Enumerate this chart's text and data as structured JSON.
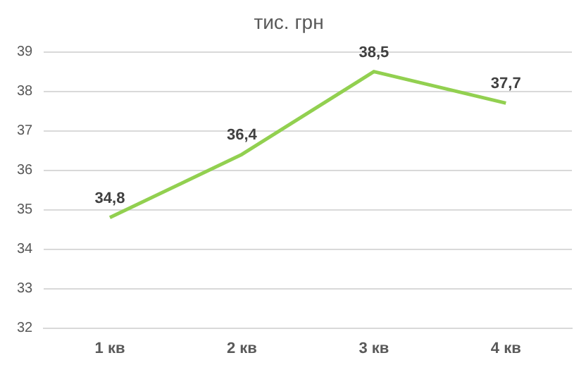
{
  "chart_data": {
    "type": "line",
    "title": "тис. грн",
    "categories": [
      "1 кв",
      "2 кв",
      "3 кв",
      "4 кв"
    ],
    "series": [
      {
        "color": "#92d050",
        "values": [
          34.8,
          36.4,
          38.5,
          37.7
        ],
        "value_labels": [
          "34,8",
          "36,4",
          "38,5",
          "37,7"
        ]
      }
    ],
    "ylim": [
      32,
      39
    ],
    "yticks": [
      32,
      33,
      34,
      35,
      36,
      37,
      38,
      39
    ],
    "grid": "y",
    "marker": "none",
    "line_style": "solid"
  }
}
